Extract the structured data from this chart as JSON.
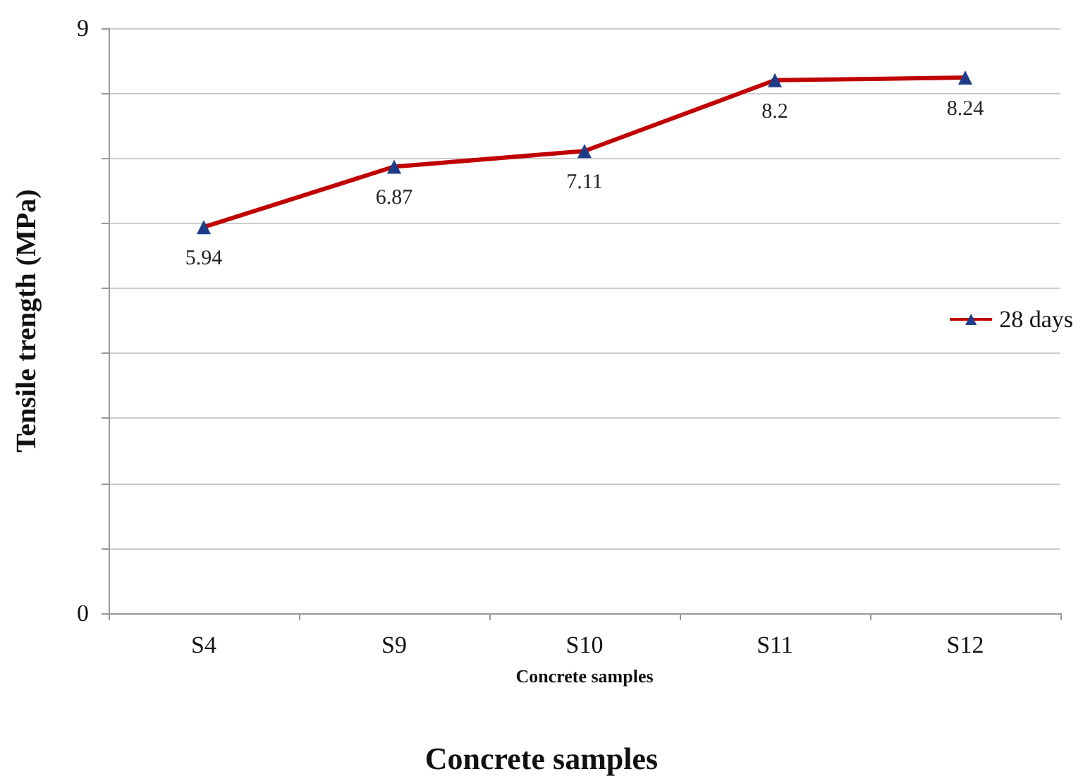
{
  "chart_data": {
    "type": "line",
    "xlabel": "Concrete samples",
    "ylabel": "Tensile trength (MPa)",
    "annotations": [
      "Concrete samples"
    ],
    "categories": [
      "S4",
      "S9",
      "S10",
      "S11",
      "S12"
    ],
    "series": [
      {
        "name": "28 days",
        "color": "#c00000",
        "values": [
          5.94,
          6.87,
          7.11,
          8.2,
          8.24
        ]
      }
    ],
    "ylim": [
      0,
      9
    ],
    "yticks": [
      0,
      {
        "value": 1,
        "label": null
      },
      {
        "value": 2,
        "label": null
      },
      {
        "value": 3,
        "label": null
      },
      {
        "value": 4,
        "label": null
      },
      {
        "value": 5,
        "label": null
      },
      {
        "value": 6,
        "label": null
      },
      {
        "value": 7,
        "label": null
      },
      {
        "value": 8,
        "label": null
      },
      9
    ],
    "grid": "y",
    "legend": "right",
    "marker": "triangle",
    "line_style": "solid",
    "data_labels": true
  }
}
